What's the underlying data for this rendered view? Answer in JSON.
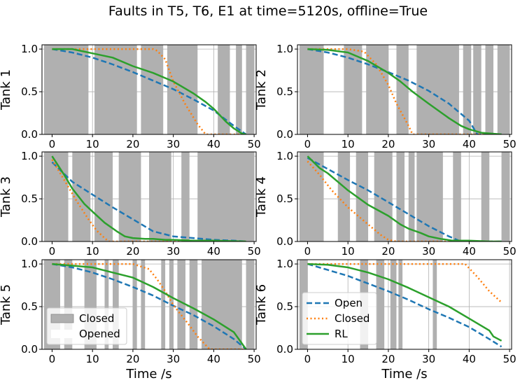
{
  "figure": {
    "title": "Faults in T5, T6, E1 at time=5120s, offline=True"
  },
  "colors": {
    "open": "#1f77b4",
    "closed": "#ff7f0e",
    "rl": "#2ca02c",
    "fault_band": "#b0b0b0",
    "grid": "#b0b0b0"
  },
  "chart_data": [
    {
      "type": "line",
      "ylabel": "Tank 1",
      "xlabel": "",
      "xlim": [
        -2.5,
        50.5
      ],
      "ylim": [
        0,
        1.05
      ],
      "xticks": [
        "0",
        "10",
        "20",
        "30",
        "40",
        "50"
      ],
      "yticks": [
        "0.0",
        "0.5",
        "1.0"
      ],
      "grid": true,
      "fault_bands": [
        [
          -2,
          9
        ],
        [
          10.5,
          21
        ],
        [
          22,
          27.5
        ],
        [
          28.5,
          36
        ],
        [
          41,
          44
        ],
        [
          45.5,
          47
        ],
        [
          48,
          50
        ]
      ],
      "series": [
        {
          "name": "Open",
          "style": "dashed",
          "x": [
            0,
            5,
            10,
            15,
            20,
            25,
            30,
            35,
            40,
            45,
            48
          ],
          "y": [
            1.0,
            0.96,
            0.9,
            0.82,
            0.73,
            0.63,
            0.53,
            0.41,
            0.28,
            0.1,
            0.0
          ]
        },
        {
          "name": "Closed",
          "style": "dotted",
          "x": [
            0,
            5,
            10,
            25,
            26,
            28,
            30,
            33,
            36,
            38,
            42,
            48
          ],
          "y": [
            1.0,
            1.0,
            1.0,
            1.0,
            0.98,
            0.88,
            0.62,
            0.35,
            0.12,
            0.0,
            0.0,
            0.0
          ]
        },
        {
          "name": "RL",
          "style": "solid",
          "x": [
            0,
            5,
            10,
            15,
            20,
            25,
            30,
            35,
            38,
            40,
            43,
            45,
            47,
            48
          ],
          "y": [
            1.0,
            1.0,
            0.95,
            0.9,
            0.8,
            0.72,
            0.62,
            0.48,
            0.38,
            0.3,
            0.15,
            0.07,
            0.01,
            0.0
          ]
        }
      ]
    },
    {
      "type": "line",
      "ylabel": "Tank 2",
      "xlabel": "",
      "xlim": [
        -2.5,
        50.5
      ],
      "ylim": [
        0,
        1.05
      ],
      "xticks": [
        "0",
        "10",
        "20",
        "30",
        "40",
        "50"
      ],
      "yticks": [
        "0.0",
        "0.5",
        "1.0"
      ],
      "grid": true,
      "fault_bands": [
        [
          -2,
          4
        ],
        [
          9,
          13.5
        ],
        [
          14.5,
          20
        ],
        [
          22,
          25
        ],
        [
          27,
          37.5
        ],
        [
          38.5,
          40.5
        ],
        [
          41,
          43
        ],
        [
          44,
          46
        ],
        [
          47,
          50
        ]
      ],
      "series": [
        {
          "name": "Open",
          "style": "dashed",
          "x": [
            0,
            5,
            10,
            15,
            20,
            25,
            30,
            35,
            40,
            42,
            48
          ],
          "y": [
            1.0,
            0.96,
            0.9,
            0.82,
            0.73,
            0.63,
            0.51,
            0.36,
            0.16,
            0.0,
            0.0
          ]
        },
        {
          "name": "Closed",
          "style": "dotted",
          "x": [
            0,
            10,
            14,
            17,
            20,
            22,
            25,
            26,
            30,
            40,
            48
          ],
          "y": [
            1.0,
            1.0,
            0.97,
            0.82,
            0.58,
            0.36,
            0.1,
            0.0,
            0.0,
            0.0,
            0.0
          ]
        },
        {
          "name": "RL",
          "style": "solid",
          "x": [
            0,
            5,
            10,
            15,
            20,
            23,
            26,
            30,
            35,
            38,
            40,
            43,
            48
          ],
          "y": [
            1.0,
            0.99,
            0.96,
            0.86,
            0.72,
            0.62,
            0.5,
            0.36,
            0.19,
            0.1,
            0.06,
            0.02,
            0.0
          ]
        }
      ]
    },
    {
      "type": "line",
      "ylabel": "Tank 3",
      "xlabel": "",
      "xlim": [
        -2.5,
        50.5
      ],
      "ylim": [
        0,
        1.05
      ],
      "xticks": [
        "0",
        "10",
        "20",
        "30",
        "40",
        "50"
      ],
      "yticks": [
        "0.0",
        "0.5",
        "1.0"
      ],
      "grid": true,
      "fault_bands": [
        [
          -2,
          4
        ],
        [
          5,
          9.5
        ],
        [
          10.5,
          15
        ],
        [
          16.5,
          22
        ],
        [
          24,
          29.5
        ],
        [
          32,
          34
        ],
        [
          36,
          50
        ]
      ],
      "series": [
        {
          "name": "Open",
          "style": "dashed",
          "x": [
            0,
            5,
            10,
            15,
            20,
            25,
            30,
            35,
            40,
            45,
            48
          ],
          "y": [
            0.93,
            0.7,
            0.55,
            0.4,
            0.26,
            0.12,
            0.06,
            0.04,
            0.02,
            0.01,
            0.0
          ]
        },
        {
          "name": "Closed",
          "style": "dotted",
          "x": [
            0,
            3,
            6,
            9,
            11,
            13,
            14,
            16,
            48
          ],
          "y": [
            0.96,
            0.72,
            0.48,
            0.26,
            0.13,
            0.04,
            0.0,
            0.0,
            0.0
          ]
        },
        {
          "name": "RL",
          "style": "solid",
          "x": [
            0,
            3,
            5,
            8,
            10,
            13,
            16,
            18,
            20,
            23,
            25,
            28,
            30,
            35,
            40,
            48
          ],
          "y": [
            1.0,
            0.78,
            0.62,
            0.44,
            0.35,
            0.22,
            0.12,
            0.06,
            0.04,
            0.03,
            0.03,
            0.02,
            0.02,
            0.01,
            0.01,
            0.0
          ]
        }
      ]
    },
    {
      "type": "line",
      "ylabel": "Tank 4",
      "xlabel": "",
      "xlim": [
        -2.5,
        50.5
      ],
      "ylim": [
        0,
        1.05
      ],
      "xticks": [
        "0",
        "10",
        "20",
        "30",
        "40",
        "50"
      ],
      "yticks": [
        "0.0",
        "0.5",
        "1.0"
      ],
      "grid": true,
      "fault_bands": [
        [
          -2,
          4
        ],
        [
          7.5,
          10.5
        ],
        [
          12,
          15
        ],
        [
          16.5,
          21
        ],
        [
          22,
          24
        ],
        [
          25,
          26.5
        ],
        [
          27,
          33.5
        ],
        [
          36,
          38
        ],
        [
          43,
          45
        ],
        [
          48,
          50
        ]
      ],
      "series": [
        {
          "name": "Open",
          "style": "dashed",
          "x": [
            0,
            5,
            10,
            15,
            20,
            25,
            30,
            35,
            38,
            48
          ],
          "y": [
            0.98,
            0.85,
            0.72,
            0.6,
            0.46,
            0.32,
            0.18,
            0.06,
            0.0,
            0.0
          ]
        },
        {
          "name": "Closed",
          "style": "dotted",
          "x": [
            0,
            3,
            6,
            10,
            15,
            18,
            20,
            22,
            48
          ],
          "y": [
            0.94,
            0.78,
            0.6,
            0.4,
            0.2,
            0.08,
            0.02,
            0.0,
            0.0
          ]
        },
        {
          "name": "RL",
          "style": "solid",
          "x": [
            0,
            3,
            5,
            10,
            15,
            20,
            23,
            25,
            28,
            30,
            33,
            36,
            40,
            45,
            48
          ],
          "y": [
            1.0,
            0.86,
            0.8,
            0.6,
            0.43,
            0.3,
            0.2,
            0.15,
            0.1,
            0.06,
            0.03,
            0.01,
            0.01,
            0.0,
            0.0
          ]
        }
      ]
    },
    {
      "type": "line",
      "ylabel": "Tank 5",
      "xlabel": "Time /s",
      "xlim": [
        -2.5,
        50.5
      ],
      "ylim": [
        0,
        1.05
      ],
      "xticks": [
        "0",
        "10",
        "20",
        "30",
        "40",
        "50"
      ],
      "yticks": [
        "0.0",
        "0.5",
        "1.0"
      ],
      "grid": true,
      "fault_bands": [
        [
          -2,
          2
        ],
        [
          3,
          5
        ],
        [
          8,
          11
        ],
        [
          13,
          14
        ],
        [
          15,
          16.5
        ],
        [
          20,
          21
        ],
        [
          22,
          23
        ],
        [
          27,
          28
        ],
        [
          29,
          30
        ],
        [
          31,
          33
        ],
        [
          34,
          36
        ],
        [
          37,
          47
        ],
        [
          48,
          50
        ]
      ],
      "series": [
        {
          "name": "Open",
          "style": "dashed",
          "x": [
            0,
            5,
            10,
            15,
            20,
            25,
            30,
            35,
            40,
            45,
            48
          ],
          "y": [
            1.0,
            0.96,
            0.9,
            0.82,
            0.73,
            0.63,
            0.51,
            0.4,
            0.27,
            0.12,
            0.0
          ]
        },
        {
          "name": "Closed",
          "style": "dotted",
          "x": [
            0,
            10,
            20,
            24,
            26,
            28,
            30,
            34,
            36,
            39,
            48
          ],
          "y": [
            1.0,
            1.0,
            1.0,
            0.94,
            0.82,
            0.68,
            0.52,
            0.28,
            0.15,
            0.0,
            0.0
          ]
        },
        {
          "name": "RL",
          "style": "solid",
          "x": [
            0,
            5,
            10,
            15,
            20,
            25,
            30,
            35,
            40,
            45,
            48
          ],
          "y": [
            1.0,
            0.98,
            0.96,
            0.9,
            0.84,
            0.73,
            0.6,
            0.48,
            0.35,
            0.2,
            0.0
          ]
        }
      ],
      "legend": {
        "placement": "lower-left",
        "entries": [
          "Closed",
          "Opened"
        ]
      }
    },
    {
      "type": "line",
      "ylabel": "Tank 6",
      "xlabel": "Time /s",
      "xlim": [
        -2.5,
        50.5
      ],
      "ylim": [
        0,
        1.05
      ],
      "xticks": [
        "0",
        "10",
        "20",
        "30",
        "40",
        "50"
      ],
      "yticks": [
        "0.0",
        "0.5",
        "1.0"
      ],
      "grid": true,
      "fault_bands": [
        [
          -2,
          0
        ],
        [
          13,
          15
        ],
        [
          17,
          19
        ],
        [
          20.5,
          22
        ],
        [
          22.5,
          23.5
        ],
        [
          31,
          32
        ]
      ],
      "series": [
        {
          "name": "Open",
          "style": "dashed",
          "x": [
            0,
            5,
            10,
            15,
            20,
            25,
            30,
            35,
            40,
            45,
            48
          ],
          "y": [
            1.0,
            0.93,
            0.86,
            0.77,
            0.68,
            0.58,
            0.47,
            0.37,
            0.26,
            0.12,
            0.03
          ]
        },
        {
          "name": "Closed",
          "style": "dotted",
          "x": [
            0,
            10,
            20,
            30,
            39,
            40,
            42,
            45,
            48
          ],
          "y": [
            1.0,
            1.0,
            1.0,
            1.0,
            1.0,
            0.95,
            0.85,
            0.68,
            0.55
          ]
        },
        {
          "name": "RL",
          "style": "solid",
          "x": [
            0,
            5,
            10,
            15,
            20,
            25,
            30,
            35,
            40,
            45,
            46,
            48
          ],
          "y": [
            1.0,
            0.99,
            0.96,
            0.9,
            0.82,
            0.72,
            0.61,
            0.5,
            0.36,
            0.22,
            0.15,
            0.1
          ]
        }
      ],
      "legend": {
        "placement": "lower-left",
        "entries": [
          "Open",
          "Closed",
          "RL"
        ]
      }
    }
  ]
}
